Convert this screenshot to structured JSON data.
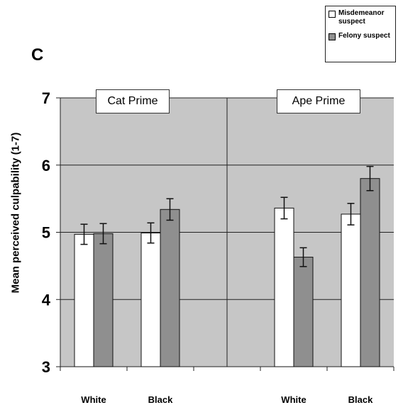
{
  "panel_letter": "C",
  "colors": {
    "misdemeanor": "#ffffff",
    "felony": "#8f8f8f",
    "plot_bg": "#c6c6c6"
  },
  "chart_data": {
    "type": "bar",
    "ylabel": "Mean perceived culpability (1-7)",
    "xlabel": "",
    "ylim": [
      3,
      7
    ],
    "yticks": [
      3,
      4,
      5,
      6,
      7
    ],
    "grid": true,
    "legend_position": "top-right",
    "legend": [
      "Misdemeanor suspect",
      "Felony suspect"
    ],
    "panels": [
      "Cat Prime",
      "Ape Prime"
    ],
    "categories": [
      "White",
      "Black",
      "White",
      "Black"
    ],
    "series": [
      {
        "name": "Misdemeanor suspect",
        "values": [
          4.97,
          4.99,
          5.36,
          5.27
        ],
        "errors": [
          0.15,
          0.15,
          0.16,
          0.16
        ]
      },
      {
        "name": "Felony suspect",
        "values": [
          4.98,
          5.34,
          4.63,
          5.8
        ],
        "errors": [
          0.15,
          0.16,
          0.14,
          0.18
        ]
      }
    ]
  }
}
